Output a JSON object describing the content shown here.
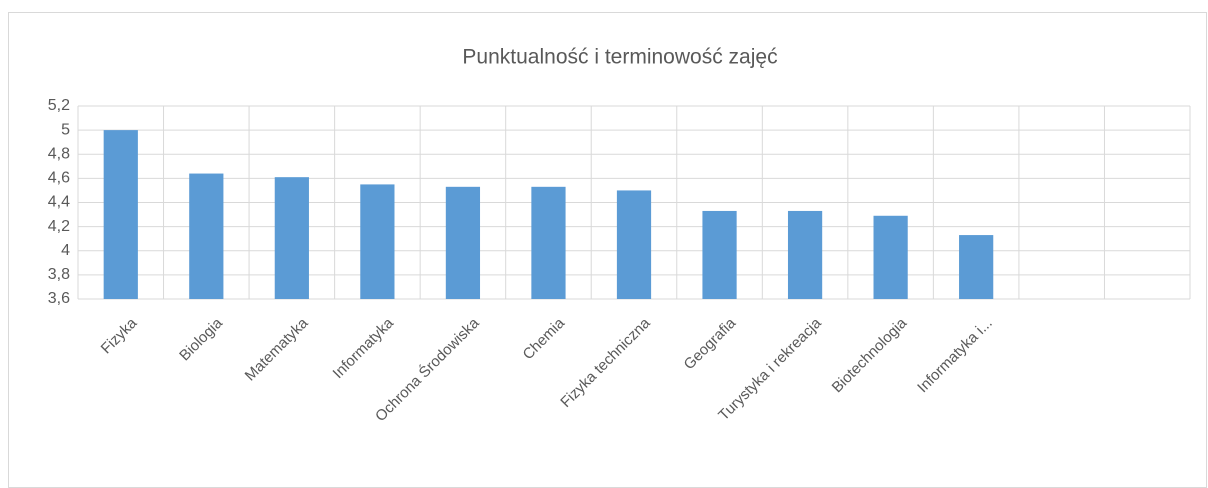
{
  "chart_data": {
    "type": "bar",
    "title": "Punktualność i terminowość zajęć",
    "categories": [
      "Fizyka",
      "Biologia",
      "Matematyka",
      "Informatyka",
      "Ochrona Środowiska",
      "Chemia",
      "Fizyka techniczna",
      "Geografia",
      "Turystyka i rekreacja",
      "Biotechnologia",
      "Informatyka i...",
      null,
      null
    ],
    "values": [
      5.0,
      4.64,
      4.61,
      4.55,
      4.53,
      4.53,
      4.5,
      4.33,
      4.33,
      4.29,
      4.13,
      null,
      null
    ],
    "color": "#5b9bd5",
    "ylim": [
      3.6,
      5.2
    ],
    "yticks": [
      {
        "value": 3.6,
        "label": "3,6"
      },
      {
        "value": 3.8,
        "label": "3,8"
      },
      4,
      {
        "value": 4.2,
        "label": "4,2"
      },
      {
        "value": 4.4,
        "label": "4,4"
      },
      {
        "value": 4.6,
        "label": "4,6"
      },
      {
        "value": 4.8,
        "label": "4,8"
      },
      5,
      {
        "value": 5.2,
        "label": "5,2"
      }
    ],
    "grid": true
  }
}
